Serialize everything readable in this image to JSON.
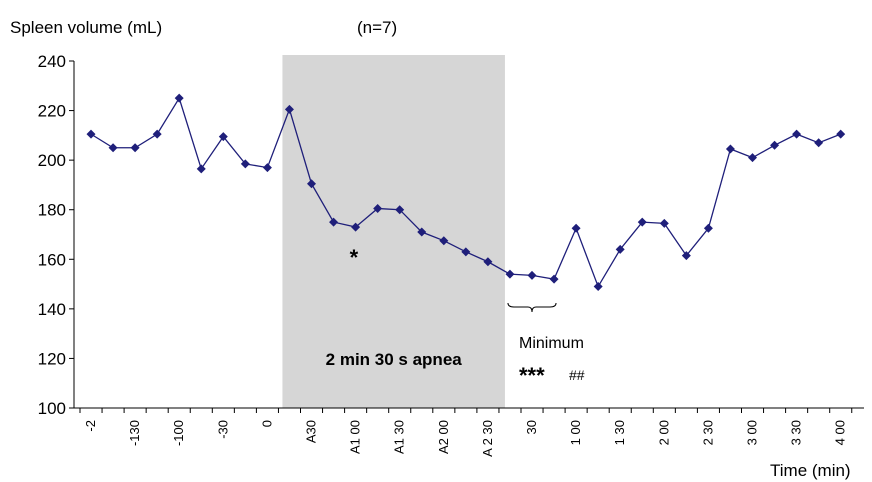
{
  "chart_data": {
    "type": "line",
    "title": "(n=7)",
    "ylabel": "Spleen volume (mL)",
    "xlabel": "Time (min)",
    "ylim": [
      100,
      240
    ],
    "yticks": [
      100,
      120,
      140,
      160,
      180,
      200,
      220,
      240
    ],
    "grid": false,
    "x_tick_labels": [
      "-2",
      "-130",
      "-100",
      "-30",
      "0",
      "A30",
      "A1 00",
      "A1 30",
      "A2 00",
      "A 2 30",
      "30",
      "1 00",
      "1 30",
      "2 00",
      "2 30",
      "3 00",
      "3 30",
      "4 00"
    ],
    "series": [
      {
        "color": "#1f1f7a",
        "marker": "diamond",
        "values": [
          210.5,
          205,
          205,
          210.5,
          225,
          196.5,
          209.5,
          198.5,
          197,
          220.5,
          190.5,
          175,
          173,
          180.5,
          180,
          171,
          167.5,
          163,
          159,
          154,
          153.5,
          152,
          172.5,
          149,
          164,
          175,
          174.5,
          161.5,
          172.5,
          204.5,
          201,
          206,
          210.5,
          207,
          210.5
        ]
      }
    ],
    "shaded_region": {
      "from_point": 9,
      "to_point": 19,
      "label": "2 min 30 s apnea",
      "color": "#d6d6d6"
    },
    "annotations": [
      {
        "text": "*",
        "near_point": 12
      },
      {
        "text": "Minimum",
        "near_points": [
          19,
          21
        ]
      },
      {
        "text": "***",
        "near_points": [
          19,
          21
        ]
      },
      {
        "text": "##",
        "near_points": [
          19,
          21
        ]
      }
    ]
  }
}
